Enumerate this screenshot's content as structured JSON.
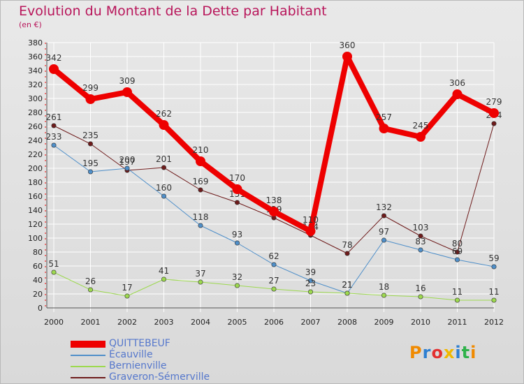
{
  "title": "Evolution du Montant de la Dette par Habitant",
  "subtitle": "(en €)",
  "logo_text": "Proxiti",
  "colors": {
    "title": "#b8155a",
    "grid": "#ffffff",
    "background_top": "#e9e9e9",
    "background_bottom": "#d9d9d9",
    "legend_text": "#5577cc"
  },
  "chart_data": {
    "type": "line",
    "title": "Evolution du Montant de la Dette par Habitant",
    "subtitle": "(en €)",
    "x": [
      "2000",
      "2001",
      "2002",
      "2003",
      "2004",
      "2005",
      "2006",
      "2007",
      "2008",
      "2009",
      "2010",
      "2011",
      "2012"
    ],
    "ylim": [
      0,
      380
    ],
    "yticks": [
      0,
      20,
      40,
      60,
      80,
      100,
      120,
      140,
      160,
      180,
      200,
      220,
      240,
      260,
      280,
      300,
      320,
      340,
      360,
      380
    ],
    "grid": true,
    "legend_position": "bottom-left",
    "series": [
      {
        "name": "Graveron-Sémerville",
        "color": "#6e1b1b",
        "values": [
          261,
          235,
          197,
          201,
          169,
          151,
          129,
          104,
          78,
          132,
          103,
          80,
          264
        ],
        "labels": [
          "261",
          "235",
          "197",
          "201",
          "169",
          "151",
          "129",
          "104",
          "78",
          "132",
          "103",
          "80",
          "264"
        ]
      },
      {
        "name": "Écauville",
        "color": "#4f8fc9",
        "values": [
          233,
          195,
          200,
          160,
          118,
          93,
          62,
          39,
          21,
          97,
          83,
          69,
          59
        ],
        "labels": [
          "233",
          "195",
          "200",
          "160",
          "118",
          "93",
          "62",
          "39",
          "21",
          "97",
          "83",
          "69",
          "59"
        ]
      },
      {
        "name": "Bernienville",
        "color": "#9dd94f",
        "values": [
          51,
          26,
          17,
          41,
          37,
          32,
          27,
          23,
          21,
          18,
          16,
          11,
          11
        ],
        "labels": [
          "51",
          "26",
          "17",
          "41",
          "37",
          "32",
          "27",
          "23",
          "21",
          "18",
          "16",
          "11",
          "11"
        ]
      },
      {
        "name": "QUITTEBEUF",
        "color": "#ee0000",
        "values": [
          342,
          299,
          309,
          262,
          210,
          170,
          138,
          110,
          360,
          257,
          245,
          306,
          279
        ],
        "labels": [
          "342",
          "299",
          "309",
          "262",
          "210",
          "170",
          "138",
          "110",
          "360",
          "257",
          "245",
          "306",
          "279"
        ]
      }
    ]
  },
  "legend": [
    {
      "label": "QUITTEBEUF",
      "color": "#ee0000"
    },
    {
      "label": "Écauville",
      "color": "#4f8fc9"
    },
    {
      "label": "Bernienville",
      "color": "#9dd94f"
    },
    {
      "label": "Graveron-Sémerville",
      "color": "#6e1b1b"
    }
  ]
}
